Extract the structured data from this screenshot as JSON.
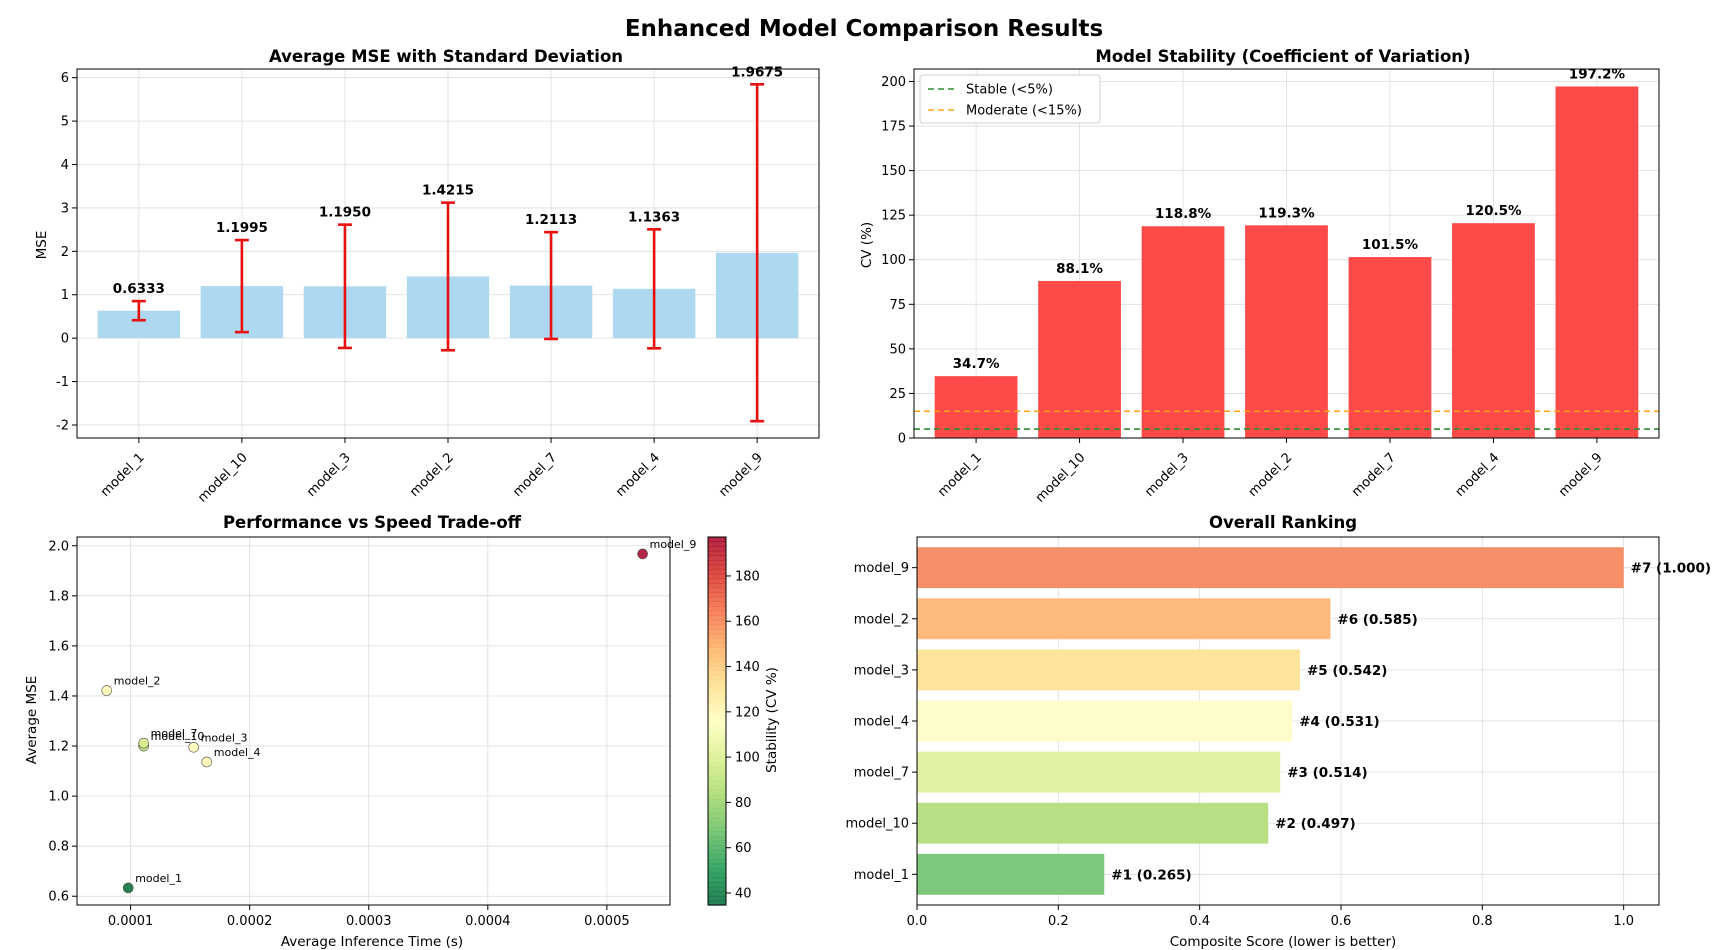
{
  "figure": {
    "title": "Enhanced Model Comparison Results"
  },
  "chart_data": [
    {
      "id": "mse",
      "type": "bar",
      "title": "Average MSE with Standard Deviation",
      "xlabel": "",
      "ylabel": "MSE",
      "categories": [
        "model_1",
        "model_10",
        "model_3",
        "model_2",
        "model_7",
        "model_4",
        "model_9"
      ],
      "values": [
        0.6333,
        1.1995,
        1.195,
        1.4215,
        1.2113,
        1.1363,
        1.9675
      ],
      "value_labels": [
        "0.6333",
        "1.1995",
        "1.1950",
        "1.4215",
        "1.2113",
        "1.1363",
        "1.9675"
      ],
      "error": [
        0.22,
        1.06,
        1.42,
        1.7,
        1.23,
        1.37,
        3.88
      ],
      "ylim": [
        -2.3,
        6.2
      ],
      "yticks": [
        -2,
        -1,
        0,
        1,
        2,
        3,
        4,
        5,
        6
      ],
      "bar_color": "#add8ef",
      "error_color": "#e8110f",
      "grid": true
    },
    {
      "id": "cv",
      "type": "bar",
      "title": "Model Stability (Coefficient of Variation)",
      "xlabel": "",
      "ylabel": "CV (%)",
      "categories": [
        "model_1",
        "model_10",
        "model_3",
        "model_2",
        "model_7",
        "model_4",
        "model_9"
      ],
      "values": [
        34.7,
        88.1,
        118.8,
        119.3,
        101.5,
        120.5,
        197.2
      ],
      "value_labels": [
        "34.7%",
        "88.1%",
        "118.8%",
        "119.3%",
        "101.5%",
        "120.5%",
        "197.2%"
      ],
      "ylim": [
        0,
        207
      ],
      "yticks": [
        0,
        25,
        50,
        75,
        100,
        125,
        150,
        175,
        200
      ],
      "bar_color": "#ff4a4a",
      "thresholds": [
        {
          "label": "Stable (<5%)",
          "value": 5,
          "color": "#2e8b2e"
        },
        {
          "label": "Moderate (<15%)",
          "value": 15,
          "color": "#ffa31a"
        }
      ],
      "legend": "top-left",
      "grid": true
    },
    {
      "id": "tradeoff",
      "type": "scatter",
      "title": "Performance vs Speed Trade-off",
      "xlabel": "Average Inference Time (s)",
      "ylabel": "Average MSE",
      "colorbar_label": "Stability (CV %)",
      "points": [
        {
          "name": "model_1",
          "x": 9.8e-05,
          "y": 0.6333,
          "cv": 34.7
        },
        {
          "name": "model_10",
          "x": 0.000111,
          "y": 1.1995,
          "cv": 88.1
        },
        {
          "name": "model_3",
          "x": 0.000153,
          "y": 1.195,
          "cv": 118.8
        },
        {
          "name": "model_2",
          "x": 8e-05,
          "y": 1.4215,
          "cv": 119.3
        },
        {
          "name": "model_7",
          "x": 0.000111,
          "y": 1.2113,
          "cv": 101.5
        },
        {
          "name": "model_4",
          "x": 0.000164,
          "y": 1.1363,
          "cv": 120.5
        },
        {
          "name": "model_9",
          "x": 0.00053,
          "y": 1.9675,
          "cv": 197.2
        }
      ],
      "xlim": [
        5.5e-05,
        0.000553
      ],
      "ylim": [
        0.565,
        2.035
      ],
      "xticks": [
        0.0001,
        0.0002,
        0.0003,
        0.0004,
        0.0005
      ],
      "xtick_labels": [
        "0.0001",
        "0.0002",
        "0.0003",
        "0.0004",
        "0.0005"
      ],
      "yticks": [
        0.6,
        0.8,
        1.0,
        1.2,
        1.4,
        1.6,
        1.8,
        2.0
      ],
      "ytick_labels": [
        "0.6",
        "0.8",
        "1.0",
        "1.2",
        "1.4",
        "1.6",
        "1.8",
        "2.0"
      ],
      "colorbar_range": [
        34.7,
        197.2
      ],
      "colorbar_ticks": [
        40,
        60,
        80,
        100,
        120,
        140,
        160,
        180
      ],
      "colormap": "RdYlGn_r",
      "grid": true
    },
    {
      "id": "ranking",
      "type": "bar",
      "orientation": "horizontal",
      "title": "Overall Ranking",
      "xlabel": "Composite Score (lower is better)",
      "ylabel": "",
      "categories": [
        "model_1",
        "model_10",
        "model_7",
        "model_4",
        "model_3",
        "model_2",
        "model_9"
      ],
      "values": [
        0.265,
        0.497,
        0.514,
        0.531,
        0.542,
        0.585,
        1.0
      ],
      "value_labels": [
        "#1 (0.265)",
        "#2 (0.497)",
        "#3 (0.514)",
        "#4 (0.531)",
        "#5 (0.542)",
        "#6 (0.585)",
        "#7 (1.000)"
      ],
      "colors": [
        "#7dc87b",
        "#b8df84",
        "#e0f2a1",
        "#fefdc9",
        "#fee39b",
        "#fdba7b",
        "#f68e67"
      ],
      "xlim": [
        0,
        1.05
      ],
      "xticks": [
        0.0,
        0.2,
        0.4,
        0.6,
        0.8,
        1.0
      ],
      "xtick_labels": [
        "0.0",
        "0.2",
        "0.4",
        "0.6",
        "0.8",
        "1.0"
      ],
      "grid": true
    }
  ]
}
